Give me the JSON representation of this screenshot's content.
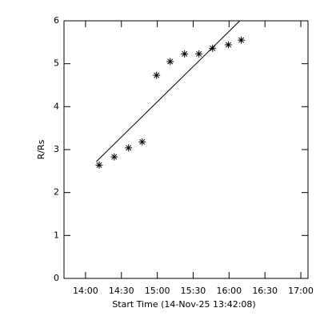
{
  "chart_data": {
    "type": "scatter",
    "xlabel": "Start Time (14-Nov-25 13:42:08)",
    "ylabel": "R/Rs",
    "x": [
      14.19,
      14.4,
      14.6,
      14.79,
      14.99,
      15.18,
      15.38,
      15.58,
      15.77,
      15.99,
      16.17
    ],
    "values": [
      2.64,
      2.83,
      3.04,
      3.18,
      4.73,
      5.05,
      5.23,
      5.23,
      5.36,
      5.44,
      5.55
    ],
    "fit": {
      "x": [
        14.15,
        16.15
      ],
      "values": [
        2.72,
        6.0
      ]
    },
    "color": "#000000",
    "xlim": [
      13.7,
      17.1
    ],
    "xticks": [
      {
        "value": 14.0,
        "label": "14:00"
      },
      {
        "value": 14.5,
        "label": "14:30"
      },
      {
        "value": 15.0,
        "label": "15:00"
      },
      {
        "value": 15.5,
        "label": "15:30"
      },
      {
        "value": 16.0,
        "label": "16:00"
      },
      {
        "value": 16.5,
        "label": "16:30"
      },
      {
        "value": 17.0,
        "label": "17:00"
      }
    ],
    "ylim": [
      0,
      6
    ],
    "yticks": [
      0,
      1,
      2,
      3,
      4,
      5,
      6
    ]
  }
}
